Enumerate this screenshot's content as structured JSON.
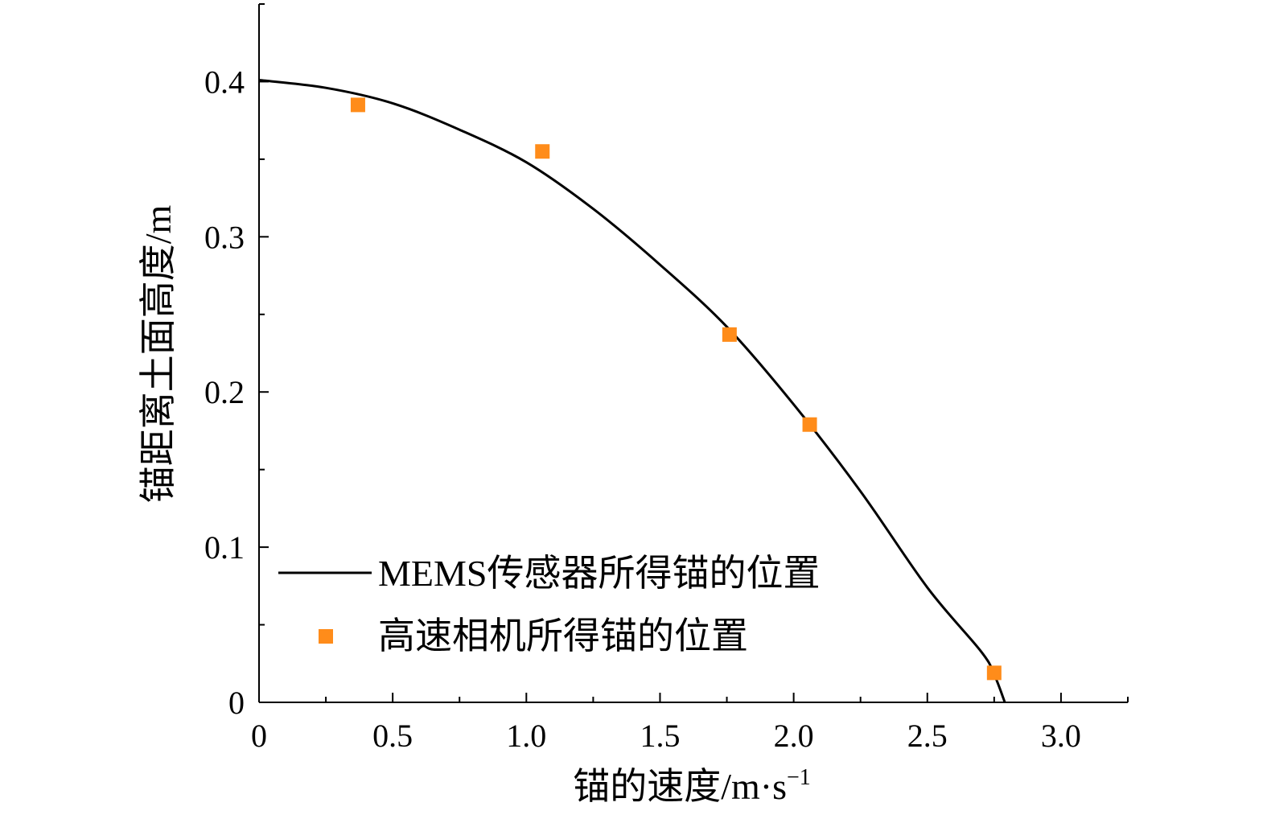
{
  "chart_data": {
    "type": "scatter",
    "xlabel": "锚的速度/m·s",
    "xlabel_sup": "−1",
    "ylabel": "锚距离土面高度/m",
    "xlim": [
      0,
      3.25
    ],
    "ylim": [
      0,
      0.45
    ],
    "x_ticks": [
      "0",
      "0.5",
      "1.0",
      "1.5",
      "2.0",
      "2.5",
      "3.0"
    ],
    "x_tick_values": [
      0,
      0.5,
      1.0,
      1.5,
      2.0,
      2.5,
      3.0
    ],
    "y_ticks": [
      "0",
      "0.1",
      "0.2",
      "0.3",
      "0.4"
    ],
    "y_tick_values": [
      0,
      0.1,
      0.2,
      0.3,
      0.4
    ],
    "legend_position": "bottom-left",
    "series": [
      {
        "name": "MEMS传感器所得锚的位置",
        "kind": "line",
        "color": "#000000",
        "x": [
          0,
          0.25,
          0.5,
          0.75,
          1.0,
          1.25,
          1.5,
          1.75,
          2.0,
          2.25,
          2.5,
          2.7,
          2.75,
          2.79
        ],
        "y": [
          0.401,
          0.396,
          0.386,
          0.369,
          0.348,
          0.318,
          0.282,
          0.242,
          0.192,
          0.136,
          0.074,
          0.033,
          0.018,
          0.0
        ]
      },
      {
        "name": "高速相机所得锚的位置",
        "kind": "scatter",
        "color": "#ff8c1a",
        "x": [
          0.37,
          1.06,
          1.76,
          2.06,
          2.75
        ],
        "y": [
          0.385,
          0.355,
          0.237,
          0.179,
          0.019
        ]
      }
    ]
  }
}
